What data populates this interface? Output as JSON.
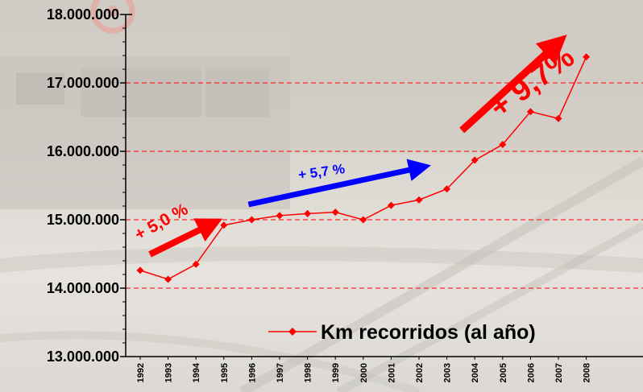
{
  "chart_data": {
    "type": "line",
    "title": "",
    "xlabel": "",
    "ylabel": "",
    "x": [
      "1992",
      "1993",
      "1994",
      "1995",
      "1996",
      "1997",
      "1998",
      "1999",
      "2000",
      "2001",
      "2002",
      "2003",
      "2004",
      "2005",
      "2006",
      "2007",
      "2008"
    ],
    "series": [
      {
        "name": "Km recorridos (al año)",
        "color": "#ff0000",
        "values": [
          14260000,
          14130000,
          14350000,
          14920000,
          15000000,
          15060000,
          15090000,
          15110000,
          15000000,
          15210000,
          15290000,
          15450000,
          15870000,
          16100000,
          16580000,
          16480000,
          17380000
        ]
      }
    ],
    "ylim": [
      13000000,
      18000000
    ],
    "yticks": [
      "13.000.000",
      "14.000.000",
      "15.000.000",
      "16.000.000",
      "17.000.000",
      "18.000.000"
    ],
    "ytick_values": [
      13000000,
      14000000,
      15000000,
      16000000,
      17000000,
      18000000
    ],
    "grid": "horizontal dashed red",
    "legend_position": "bottom-right",
    "annotations": [
      {
        "text": "+ 5,0 %",
        "color": "#ff0000",
        "from_x": "1992",
        "to_x": "1994"
      },
      {
        "text": "+ 5,7 %",
        "color": "#0000ff",
        "from_x": "1996",
        "to_x": "2003"
      },
      {
        "text": "+ 9,7%",
        "color": "#ff0000",
        "from_x": "2004",
        "to_x": "2008"
      }
    ]
  }
}
